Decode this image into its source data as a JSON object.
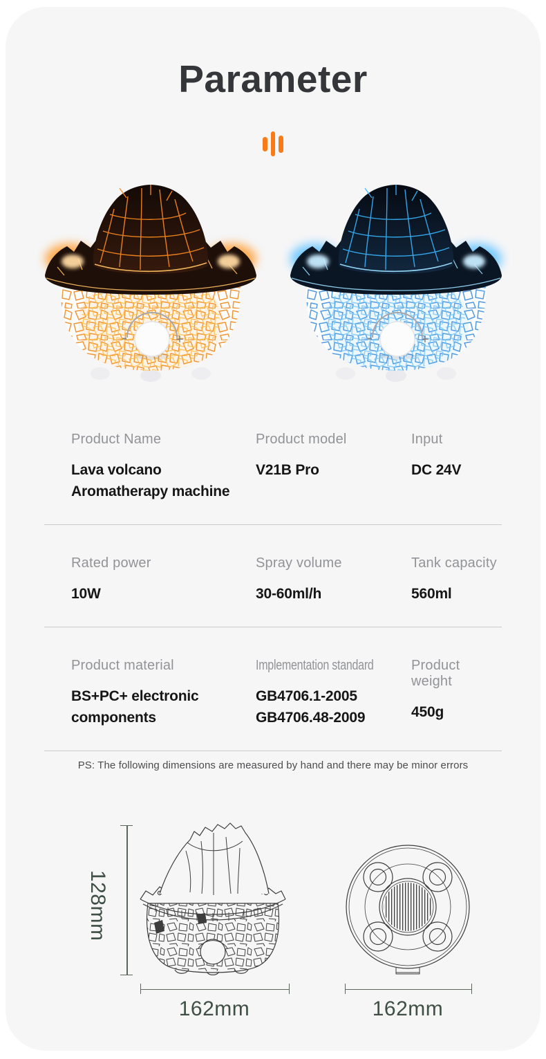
{
  "page": {
    "title": "Parameter"
  },
  "divider_icon": {
    "name": "pulse-bars-icon",
    "color": "#f97b17"
  },
  "products": [
    {
      "variant": "lava-orange",
      "knob_minus": "-",
      "knob_plus": "+",
      "colors": {
        "crack": "#ef8a20",
        "crack_light": "#ffc447",
        "lava": "#ff8c1f",
        "lava_light": "#ffc061",
        "glow": "#ff9c2e",
        "glow_core": "#ffd9a0",
        "cone_top": "#140a06",
        "cone_bottom": "#361a0d",
        "rim": "#1e0f09"
      }
    },
    {
      "variant": "lava-blue",
      "knob_minus": "-",
      "knob_plus": "+",
      "colors": {
        "crack": "#3e8ede",
        "crack_light": "#7cc8f5",
        "lava": "#38b6ff",
        "lava_light": "#9adeff",
        "glow": "#5fc2ff",
        "glow_core": "#c8ecff",
        "cone_top": "#060a12",
        "cone_bottom": "#12283f",
        "rim": "#0b1624"
      }
    }
  ],
  "specs": {
    "rows": [
      {
        "cells": [
          {
            "label": "Product Name",
            "value": "Lava volcano Aromatherapy machine"
          },
          {
            "label": "Product model",
            "value": "V21B Pro"
          },
          {
            "label": "Input",
            "value": "DC 24V"
          }
        ]
      },
      {
        "cells": [
          {
            "label": "Rated power",
            "value": "10W"
          },
          {
            "label": "Spray volume",
            "value": "30-60ml/h"
          },
          {
            "label": "Tank capacity",
            "value": "560ml"
          }
        ]
      },
      {
        "cells": [
          {
            "label": "Product material",
            "value": "BS+PC+ electronic components"
          },
          {
            "label": "Implementation standard",
            "value": "GB4706.1-2005\nGB4706.48-2009"
          },
          {
            "label": "Product weight",
            "value": "450g"
          }
        ]
      }
    ]
  },
  "note": "PS: The following dimensions are measured by hand and there may be minor errors",
  "diagrams": {
    "front": {
      "height_label": "128mm",
      "width_label": "162mm"
    },
    "bottom": {
      "width_label": "162mm"
    },
    "dim_color": "#3f4f45",
    "line_color": "#5a655c",
    "sketch_color": "#3d3d3d"
  }
}
